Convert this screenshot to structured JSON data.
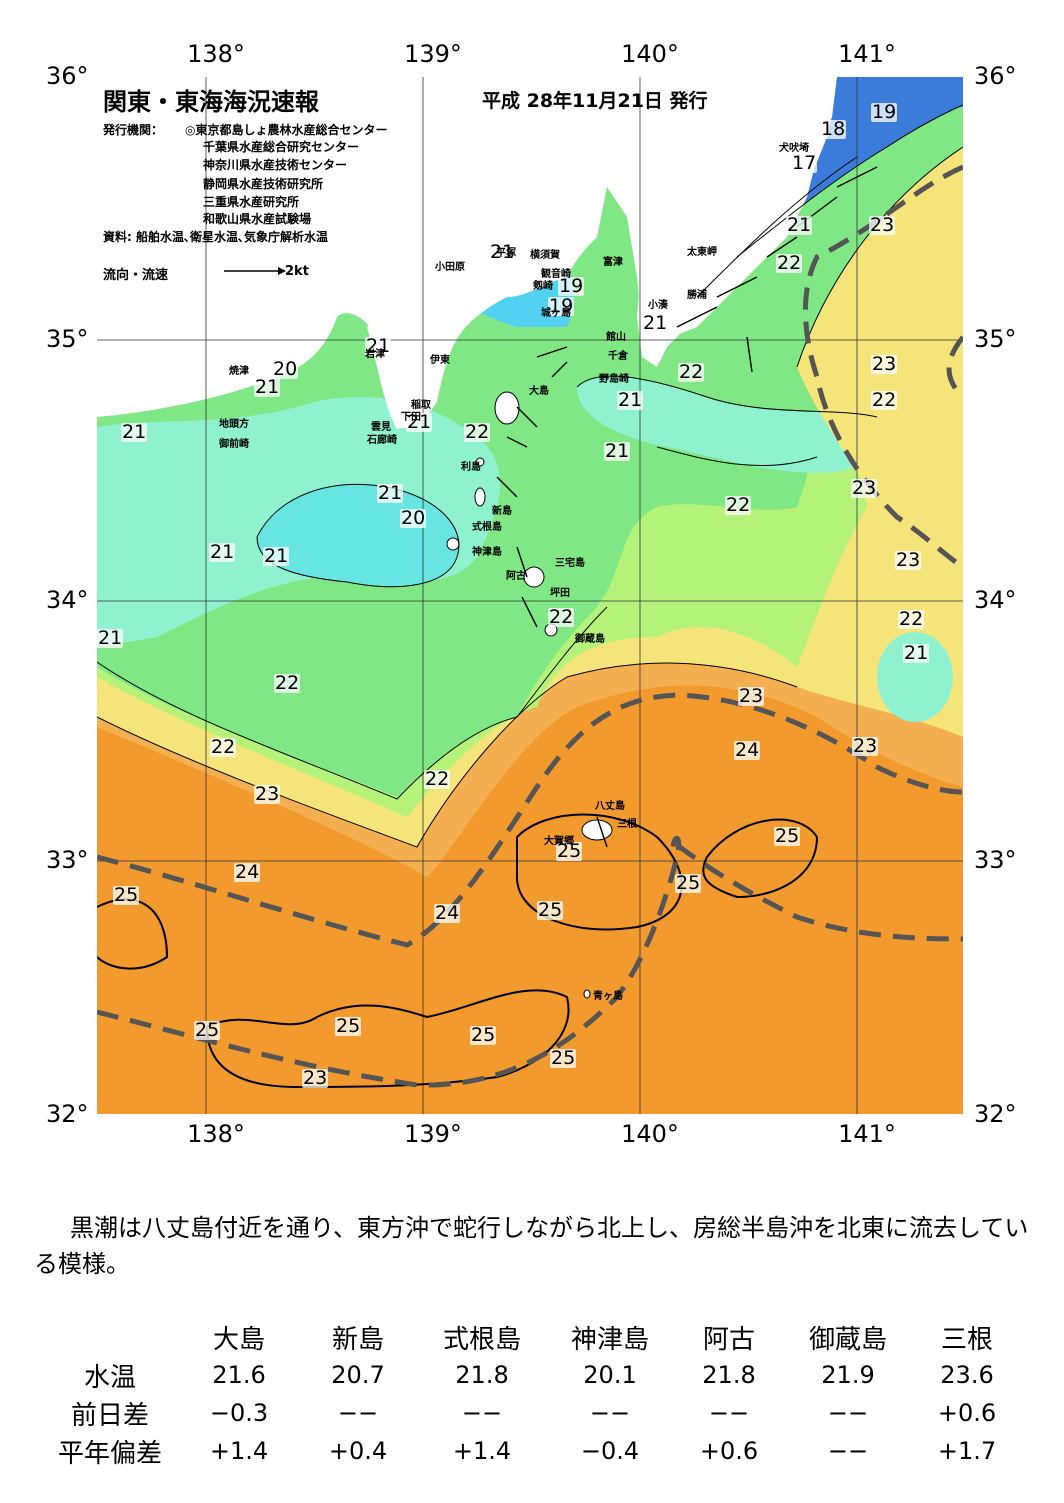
{
  "header": {
    "title": "関東・東海海況速報",
    "issue_date": "平成  28年11月21日 発行",
    "agency_label": "発行機関：",
    "agencies": [
      "◎東京都島しょ農林水産総合センター",
      "千葉県水産総合研究センター",
      "神奈川県水産技術センター",
      "静岡県水産技術研究所",
      "三重県水産研究所",
      "和歌山県水産試験場"
    ],
    "source": "資料: 船舶水温､衛星水温､気象庁解析水温",
    "legend_label": "流向・流速",
    "legend_scale": "2kt"
  },
  "axes": {
    "lon_labels": [
      "138°",
      "139°",
      "140°",
      "141°"
    ],
    "lat_labels": [
      "36°",
      "35°",
      "34°",
      "33°",
      "32°"
    ]
  },
  "place_names": [
    "犬吠埼",
    "太東岬",
    "勝浦",
    "小湊",
    "富津",
    "横須賀",
    "観音崎",
    "剱崎",
    "城ヶ島",
    "館山",
    "千倉",
    "野島崎",
    "平塚",
    "小田原",
    "伊東",
    "稲取",
    "下田",
    "雲見",
    "石廊崎",
    "岩津",
    "焼津",
    "地頭方",
    "御前崎",
    "大島",
    "利島",
    "新島",
    "式根島",
    "神津島",
    "三宅島",
    "坪田",
    "阿古",
    "御蔵島",
    "八丈島",
    "大賀郷",
    "三根",
    "青ヶ島"
  ],
  "temp_labels": [
    "19",
    "18",
    "17",
    "21",
    "23",
    "22",
    "21",
    "19",
    "19",
    "21",
    "21",
    "21",
    "20",
    "21",
    "21",
    "22",
    "21",
    "22",
    "21",
    "23",
    "22",
    "23",
    "21",
    "20",
    "21",
    "21",
    "22",
    "21",
    "22",
    "23",
    "22",
    "21",
    "22",
    "22",
    "23",
    "24",
    "23",
    "22",
    "23",
    "24",
    "25",
    "24",
    "25",
    "25",
    "25",
    "25",
    "25",
    "25",
    "25",
    "25",
    "23"
  ],
  "summary_text": "黒潮は八丈島付近を通り、東方沖で蛇行しながら北上し、房総半島沖を北東に流去している模様。",
  "observations": {
    "stations": [
      "大島",
      "新島",
      "式根島",
      "神津島",
      "阿古",
      "御蔵島",
      "三根"
    ],
    "rows": [
      {
        "label": "水温",
        "values": [
          "21.6",
          "20.7",
          "21.8",
          "20.1",
          "21.8",
          "21.9",
          "23.6"
        ]
      },
      {
        "label": "前日差",
        "values": [
          "−0.3",
          "−−",
          "−−",
          "−−",
          "−−",
          "−−",
          "+0.6"
        ]
      },
      {
        "label": "平年偏差",
        "values": [
          "+1.4",
          "+0.4",
          "+1.4",
          "−0.4",
          "+0.6",
          "−−",
          "+1.7"
        ]
      }
    ]
  },
  "colors": {
    "t17": "#3b7bd9",
    "t18": "#5aa6ee",
    "t19": "#52d2f0",
    "t20": "#66e5e2",
    "t21": "#8ff2cf",
    "t22": "#7fe885",
    "t22b": "#b5f27a",
    "t23": "#f4e47a",
    "t24": "#f4b050",
    "t25": "#f29a2e",
    "land": "#ffffff",
    "kuroshio": "#555555"
  }
}
